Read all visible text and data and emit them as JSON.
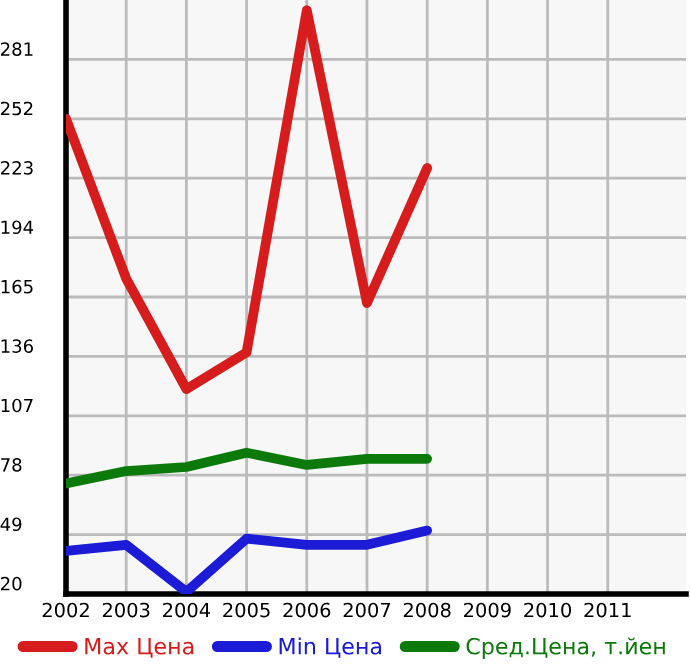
{
  "chart_data": {
    "type": "line",
    "x": [
      2002,
      2003,
      2004,
      2005,
      2006,
      2007,
      2008
    ],
    "series": [
      {
        "name": "Max Цена",
        "color": "#d61c1c",
        "values": [
          252,
          174,
          120,
          138,
          305,
          162,
          228
        ]
      },
      {
        "name": "Min Цена",
        "color": "#1c1cd6",
        "values": [
          41,
          44,
          21,
          47,
          44,
          44,
          51
        ]
      },
      {
        "name": "Сред.Цена, т.йен",
        "color": "#0b7a0b",
        "values": [
          74,
          80,
          82,
          89,
          83,
          86,
          86
        ]
      }
    ],
    "xlim": [
      2002,
      2012.3
    ],
    "xticks": [
      2002,
      2003,
      2004,
      2005,
      2006,
      2007,
      2008,
      2009,
      2010,
      2011
    ],
    "ylim": [
      20,
      310
    ],
    "yticks": [
      20,
      49,
      78,
      107,
      136,
      165,
      194,
      223,
      252,
      281
    ],
    "grid": true,
    "legend": "bottom",
    "marker": "none",
    "line_style": "solid"
  }
}
